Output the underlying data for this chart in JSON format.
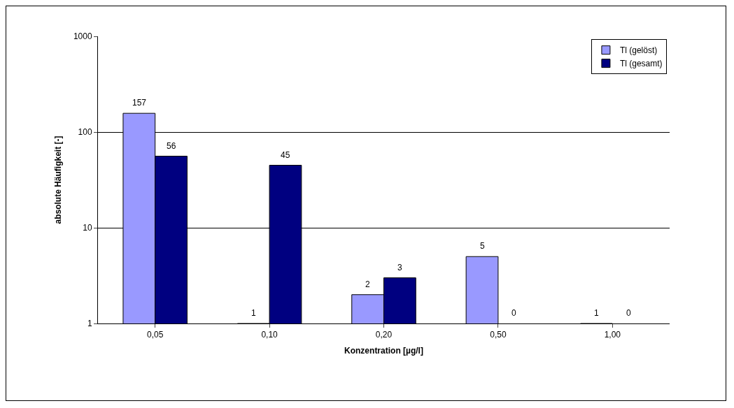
{
  "chart_data": {
    "type": "bar",
    "categories": [
      "0,05",
      "0,10",
      "0,20",
      "0,50",
      "1,00"
    ],
    "series": [
      {
        "name": "Tl (gelöst)",
        "color": "#9999ff",
        "values": [
          157,
          1,
          2,
          5,
          1
        ],
        "value_labels": [
          "157",
          "1",
          "2",
          "5",
          "1"
        ]
      },
      {
        "name": "Tl (gesamt)",
        "color": "#000080",
        "values": [
          56,
          45,
          3,
          null,
          null
        ],
        "value_labels": [
          "56",
          "45",
          "3",
          "0",
          "0"
        ]
      }
    ],
    "xlabel": "Konzentration [µg/l]",
    "ylabel": "absolute Häufigkeit [-]",
    "log": "y",
    "ylim": [
      1,
      1000
    ],
    "yticks": [
      1,
      10,
      100,
      1000
    ],
    "grid": "y",
    "legend": "top right"
  }
}
